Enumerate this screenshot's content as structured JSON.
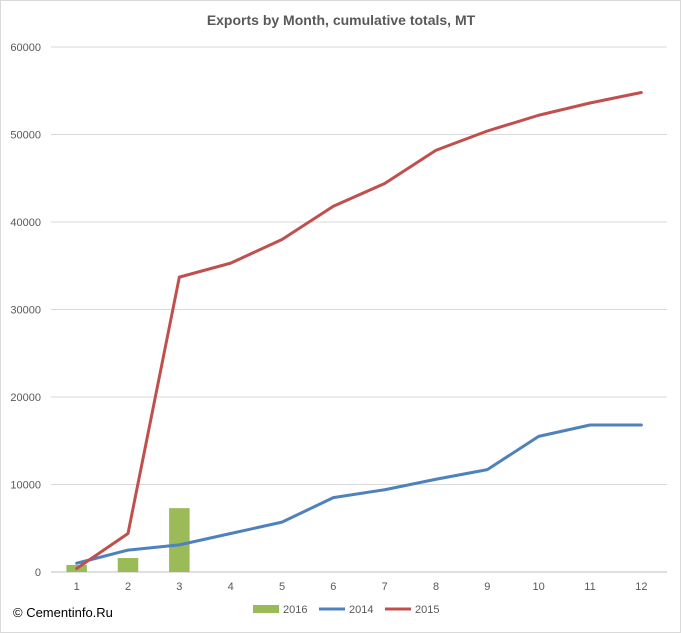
{
  "copyright": "© Cementinfo.Ru",
  "chart_data": {
    "type": "line",
    "title": "Exports by Month, cumulative totals, MT",
    "xlabel": "",
    "ylabel": "",
    "categories": [
      "1",
      "2",
      "3",
      "4",
      "5",
      "6",
      "7",
      "8",
      "9",
      "10",
      "11",
      "12"
    ],
    "ylim": [
      0,
      60000
    ],
    "yticks": [
      "0",
      "10000",
      "20000",
      "30000",
      "40000",
      "50000",
      "60000"
    ],
    "grid": true,
    "legend_position": "bottom",
    "series": [
      {
        "name": "2016",
        "kind": "bar",
        "color": "#9bbb59",
        "values": [
          800,
          1600,
          7300,
          null,
          null,
          null,
          null,
          null,
          null,
          null,
          null,
          null
        ]
      },
      {
        "name": "2014",
        "kind": "line",
        "color": "#4f81bd",
        "values": [
          1000,
          2500,
          3100,
          4400,
          5700,
          8500,
          9400,
          10600,
          11700,
          15500,
          16800,
          16800
        ]
      },
      {
        "name": "2015",
        "kind": "line",
        "color": "#c0504d",
        "values": [
          400,
          4400,
          33700,
          35300,
          38000,
          41800,
          44400,
          48200,
          50400,
          52200,
          53600,
          54800
        ]
      }
    ]
  }
}
